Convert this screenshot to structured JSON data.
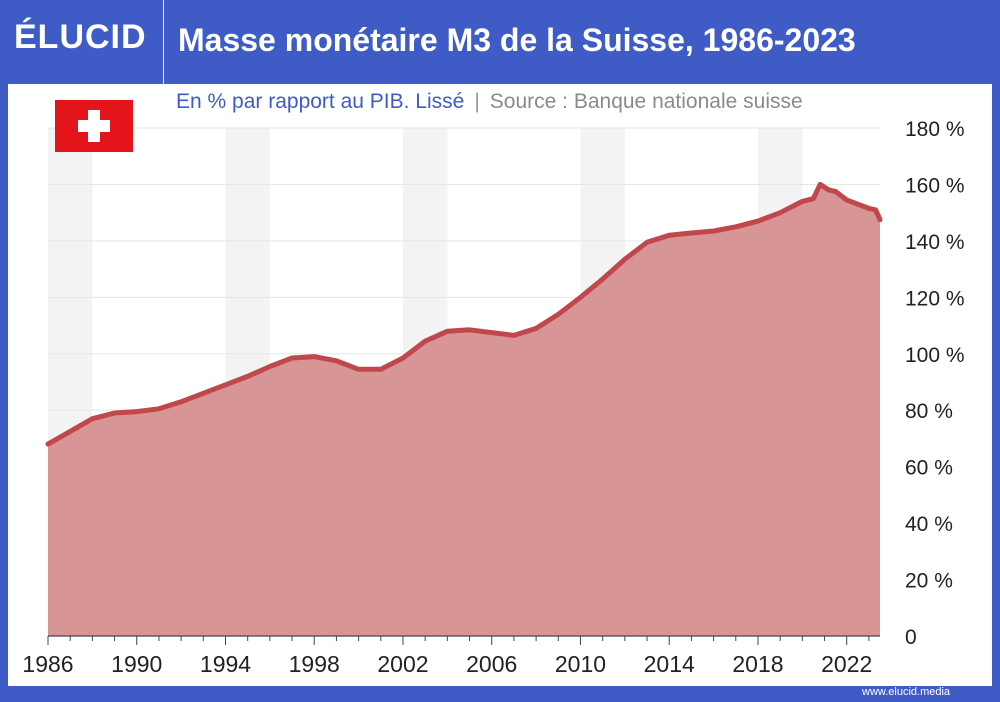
{
  "header": {
    "logo": "ÉLUCID",
    "title": "Masse monétaire M3 de la Suisse, 1986-2023"
  },
  "subtitle": {
    "description": "En % par rapport au PIB. Lissé",
    "separator": "|",
    "source": "Source : Banque nationale suisse"
  },
  "footer": {
    "url": "www.elucid.media"
  },
  "colors": {
    "background": "#3f5bc6",
    "line": "#c0474b",
    "area": "#d89596",
    "band": "#f3f3f3",
    "flag_red": "#e3151b"
  },
  "chart_data": {
    "type": "area",
    "title": "Masse monétaire M3 de la Suisse, 1986-2023",
    "xlabel": "",
    "ylabel": "",
    "xlim": [
      1986,
      2023.5
    ],
    "ylim": [
      0,
      180
    ],
    "grid": true,
    "y_axis_side": "right",
    "x_ticks": [
      "1986",
      "1990",
      "1994",
      "1998",
      "2002",
      "2006",
      "2010",
      "2014",
      "2018",
      "2022"
    ],
    "y_ticks": [
      "180 %",
      "160 %",
      "140 %",
      "120 %",
      "100 %",
      "80 %",
      "60 %",
      "40 %",
      "20 %",
      "0"
    ],
    "series": [
      {
        "x": [
          1986,
          1987,
          1988,
          1989,
          1990,
          1991,
          1992,
          1993,
          1994,
          1995,
          1996,
          1997,
          1998,
          1999,
          2000,
          2001,
          2002,
          2003,
          2004,
          2005,
          2006,
          2007,
          2008,
          2009,
          2010,
          2011,
          2012,
          2013,
          2014,
          2015,
          2016,
          2017,
          2018,
          2019,
          2020,
          2020.5,
          2020.8,
          2021.2,
          2021.5,
          2022,
          2022.5,
          2023,
          2023.3,
          2023.5
        ],
        "y": [
          68,
          72.5,
          77,
          79,
          79.5,
          80.5,
          83,
          86,
          89,
          92,
          95.5,
          98.5,
          99,
          97.5,
          94.5,
          94.5,
          98.5,
          104.5,
          108,
          108.5,
          107.5,
          106.5,
          109,
          114,
          120,
          126.5,
          133.5,
          139.5,
          142,
          142.8,
          143.5,
          145,
          147,
          150,
          154,
          155,
          160,
          158,
          157.5,
          154.5,
          153,
          151.5,
          151,
          147.5
        ]
      }
    ]
  }
}
